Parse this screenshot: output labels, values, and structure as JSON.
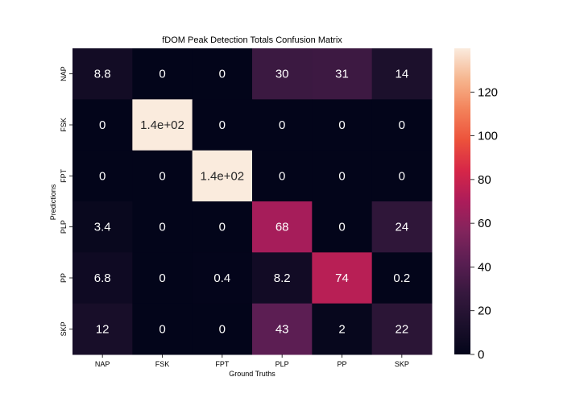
{
  "chart_data": {
    "type": "heatmap",
    "title": "fDOM Peak Detection Totals Confusion Matrix",
    "xlabel": "Ground Truths",
    "ylabel": "Predictions",
    "x_categories": [
      "NAP",
      "FSK",
      "FPT",
      "PLP",
      "PP",
      "SKP"
    ],
    "y_categories": [
      "NAP",
      "FSK",
      "FPT",
      "PLP",
      "PP",
      "SKP"
    ],
    "values": [
      [
        8.8,
        0,
        0,
        30,
        31,
        14
      ],
      [
        0,
        140,
        0,
        0,
        0,
        0
      ],
      [
        0,
        0,
        140,
        0,
        0,
        0
      ],
      [
        3.4,
        0,
        0,
        68,
        0,
        24
      ],
      [
        6.8,
        0,
        0.4,
        8.2,
        74,
        0.2
      ],
      [
        12,
        0,
        0,
        43,
        2,
        22
      ]
    ],
    "cell_labels": [
      [
        "8.8",
        "0",
        "0",
        "30",
        "31",
        "14"
      ],
      [
        "0",
        "1.4e+02",
        "0",
        "0",
        "0",
        "0"
      ],
      [
        "0",
        "0",
        "1.4e+02",
        "0",
        "0",
        "0"
      ],
      [
        "3.4",
        "0",
        "0",
        "68",
        "0",
        "24"
      ],
      [
        "6.8",
        "0",
        "0.4",
        "8.2",
        "74",
        "0.2"
      ],
      [
        "12",
        "0",
        "0",
        "43",
        "2",
        "22"
      ]
    ],
    "colorbar": {
      "range": [
        0,
        140
      ],
      "ticks": [
        0,
        20,
        40,
        60,
        80,
        100,
        120
      ],
      "tick_labels": [
        "0",
        "20",
        "40",
        "60",
        "80",
        "100",
        "120"
      ],
      "colormap": "rocket"
    },
    "grid": false,
    "legend": "colorbar-right"
  }
}
